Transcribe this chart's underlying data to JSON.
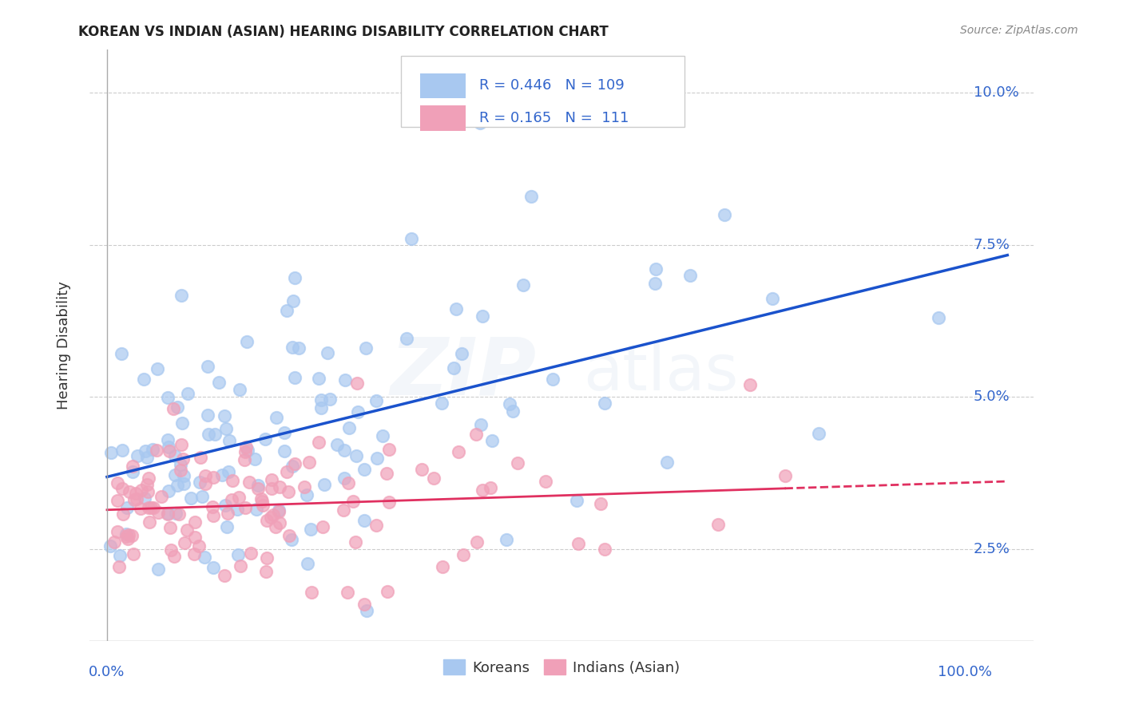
{
  "title": "KOREAN VS INDIAN (ASIAN) HEARING DISABILITY CORRELATION CHART",
  "source": "Source: ZipAtlas.com",
  "ylabel": "Hearing Disability",
  "korean_R": 0.446,
  "korean_N": 109,
  "indian_R": 0.165,
  "indian_N": 111,
  "korean_color": "#A8C8F0",
  "indian_color": "#F0A0B8",
  "korean_line_color": "#1A52CC",
  "indian_line_color": "#E03060",
  "legend_text_color": "#3366CC",
  "background_color": "#ffffff",
  "grid_color": "#cccccc",
  "ylim_low": 0.01,
  "ylim_high": 0.107,
  "xlim_low": -0.02,
  "xlim_high": 1.08,
  "ytick_positions": [
    0.025,
    0.05,
    0.075,
    0.1
  ],
  "ytick_labels": [
    "2.5%",
    "5.0%",
    "7.5%",
    "10.0%"
  ],
  "axis_label_color": "#3366CC",
  "marker_size": 120,
  "title_fontsize": 12,
  "source_fontsize": 10,
  "legend_fontsize": 13,
  "axis_fontsize": 13
}
